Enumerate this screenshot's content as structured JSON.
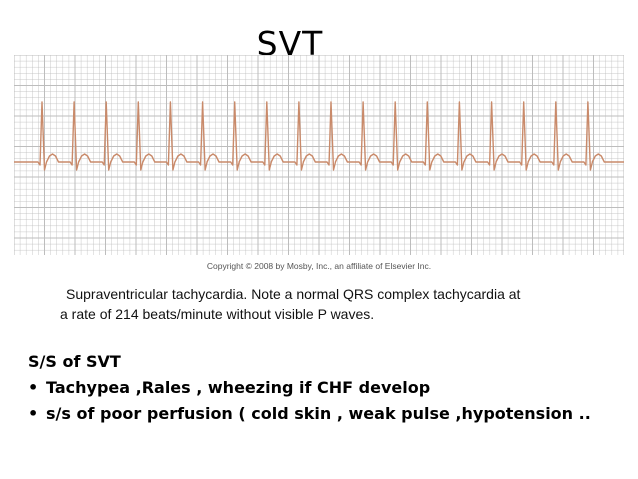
{
  "slide": {
    "title": "SVT",
    "figure": {
      "copyright": "Copyright © 2008 by Mosby, Inc., an affiliate of Elsevier Inc.",
      "ecg": {
        "beat_count": 18,
        "grid_color": "#bdbdbd",
        "trace_color": "#c98a6a"
      }
    },
    "caption": {
      "line1": "Supraventricular tachycardia. Note a normal QRS complex tachycardia at",
      "line2": "a rate of 214 beats/minute without visible P waves."
    },
    "signs_heading": "S/S of SVT",
    "bullets": [
      "Tachypea ,Rales , wheezing if CHF develop",
      "s/s of poor perfusion ( cold skin , weak pulse ,hypotension .."
    ],
    "bullet_symbol": "•"
  }
}
